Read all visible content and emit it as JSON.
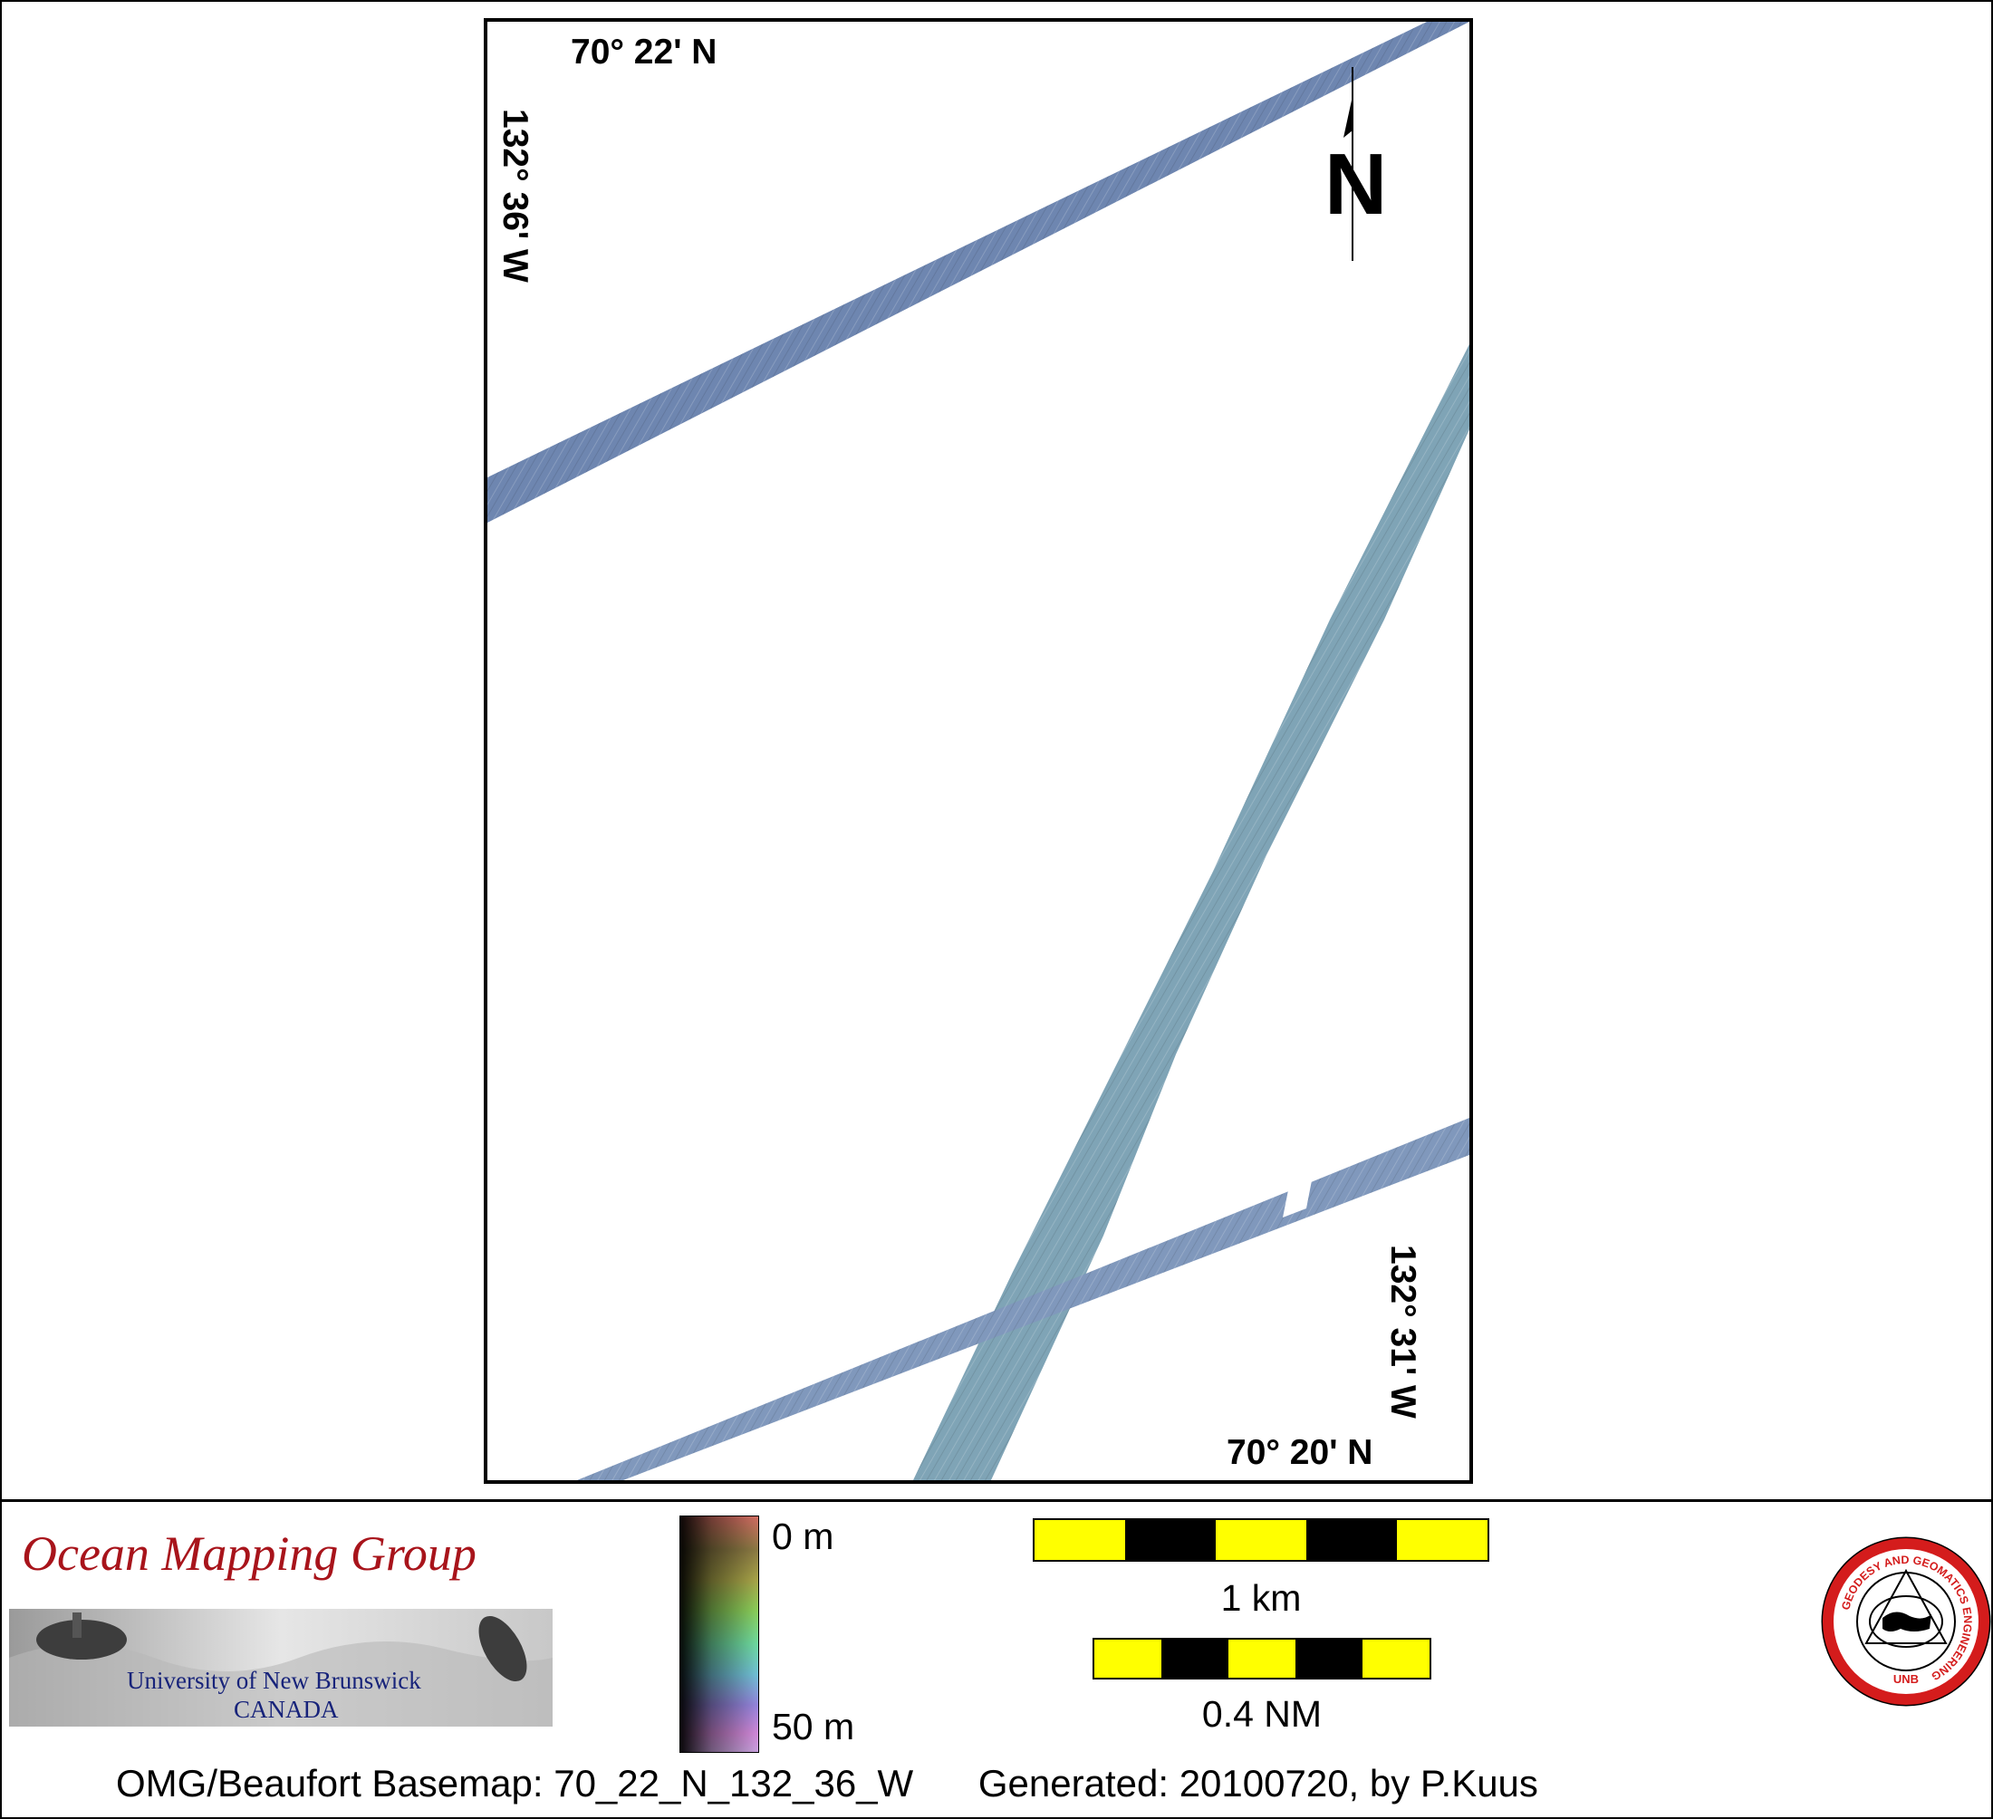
{
  "map": {
    "lat_top": "70° 22' N",
    "lat_bottom": "70° 20' N",
    "lon_left": "132° 36' W",
    "lon_right": "132° 31' W",
    "north_arrow": "N",
    "swath_colors": {
      "top": "#6e86b0",
      "diagonal": "#7fa4b6",
      "lower": "#8098bc"
    }
  },
  "logo": {
    "title": "Ocean Mapping Group",
    "university": "University of New Brunswick",
    "country": "CANADA"
  },
  "colorbar": {
    "top_label": "0 m",
    "bottom_label": "50 m"
  },
  "scales": {
    "km_label": "1 km",
    "nm_label": "0.4 NM",
    "colors": {
      "light": "#ffff00",
      "dark": "#000000"
    }
  },
  "emblem": {
    "ring_text": "GEODESY AND GEOMATICS ENGINEERING",
    "bottom_text": "UNB"
  },
  "footer": {
    "basemap": "OMG/Beaufort Basemap: 70_22_N_132_36_W",
    "generated": "Generated: 20100720, by P.Kuus"
  }
}
